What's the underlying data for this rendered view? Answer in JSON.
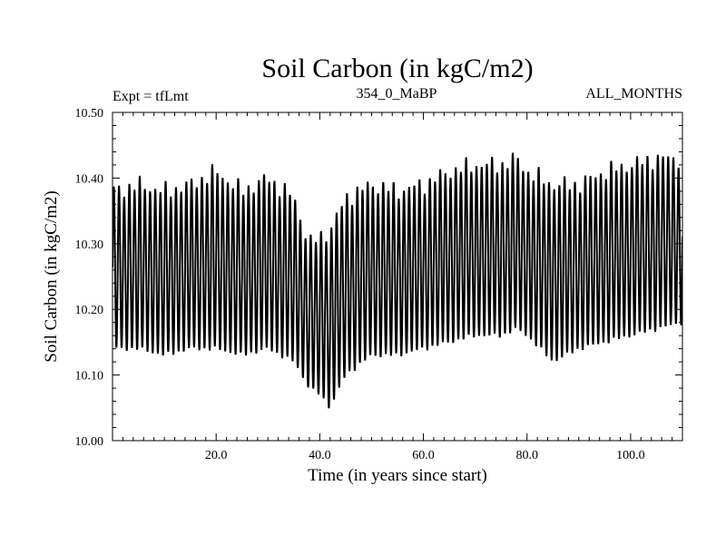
{
  "chart_data": {
    "type": "line",
    "title": "Soil Carbon (in kgC/m2)",
    "subtitle_left": "Expt = tfLmt",
    "subtitle_center": "354_0_MaBP",
    "subtitle_right": "ALL_MONTHS",
    "xlabel": "Time (in years since start)",
    "ylabel": "Soil Carbon (in kgC/m2)",
    "xlim": [
      0,
      110
    ],
    "ylim": [
      10.0,
      10.5
    ],
    "x_ticks": [
      20,
      40,
      60,
      80,
      100
    ],
    "x_tick_labels": [
      "20.0",
      "40.0",
      "60.0",
      "80.0",
      "100.0"
    ],
    "y_ticks": [
      10.0,
      10.1,
      10.2,
      10.3,
      10.4,
      10.5
    ],
    "y_tick_labels": [
      "10.00",
      "10.10",
      "10.20",
      "10.30",
      "10.40",
      "10.50"
    ],
    "series": [
      {
        "name": "Soil Carbon",
        "cycle_period_years": 1,
        "envelope_years": [
          0,
          5,
          10,
          15,
          20,
          25,
          30,
          35,
          38,
          40,
          42,
          45,
          50,
          55,
          60,
          65,
          70,
          75,
          78,
          80,
          85,
          90,
          95,
          100,
          105,
          110
        ],
        "annual_max": [
          10.38,
          10.39,
          10.38,
          10.39,
          10.41,
          10.38,
          10.4,
          10.37,
          10.3,
          10.31,
          10.32,
          10.37,
          10.39,
          10.38,
          10.39,
          10.41,
          10.42,
          10.42,
          10.43,
          10.41,
          10.39,
          10.39,
          10.41,
          10.42,
          10.43,
          10.43
        ],
        "annual_min": [
          10.14,
          10.14,
          10.13,
          10.14,
          10.14,
          10.13,
          10.14,
          10.12,
          10.08,
          10.07,
          10.05,
          10.1,
          10.13,
          10.13,
          10.14,
          10.15,
          10.16,
          10.16,
          10.17,
          10.16,
          10.12,
          10.14,
          10.15,
          10.16,
          10.17,
          10.18
        ]
      }
    ]
  }
}
